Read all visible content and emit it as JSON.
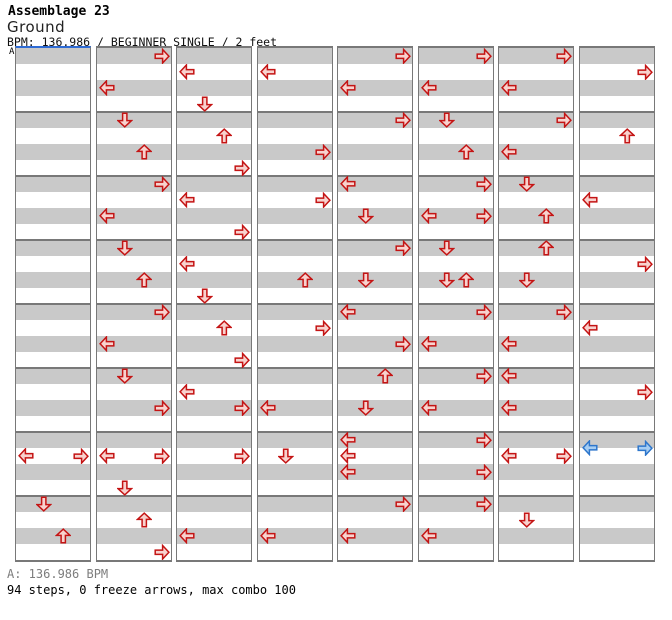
{
  "header": {
    "artist": "Assemblage 23",
    "title": "Ground",
    "meta": "BPM: 136.986 / BEGINNER SINGLE / 2 feet"
  },
  "footer": {
    "bpm_line": "A: 136.986 BPM",
    "stats_line": "94 steps, 0 freeze arrows, max combo 100"
  },
  "chart": {
    "section_label": "A",
    "lanes": [
      "left",
      "down",
      "up",
      "right"
    ],
    "columns": 8,
    "measures_per_column": 8,
    "rows_per_measure": 4,
    "note_colors": {
      "red_note_fill": "#f8d2ce",
      "red_note_stroke": "#c41414",
      "blue_note_fill": "#a6cdf2",
      "blue_note_stroke": "#2d76cc"
    },
    "colors": {
      "row_gray": "#c9c9c9",
      "row_white": "#ffffff",
      "grid_border": "#787878",
      "section_line_blue": "#2e6bd4",
      "footer_gray": "#7d7d7d"
    },
    "notes": [
      [
        [
          25,
          0
        ],
        [
          25,
          3
        ],
        [
          28,
          1
        ],
        [
          30,
          2
        ]
      ],
      [
        [
          0,
          3
        ],
        [
          2,
          0
        ],
        [
          4,
          1
        ],
        [
          6,
          2
        ],
        [
          8,
          3
        ],
        [
          10,
          0
        ],
        [
          12,
          1
        ],
        [
          14,
          2
        ],
        [
          16,
          3
        ],
        [
          18,
          0
        ],
        [
          20,
          1
        ],
        [
          22,
          3
        ],
        [
          25,
          0
        ],
        [
          25,
          3
        ],
        [
          27,
          1
        ],
        [
          29,
          2
        ],
        [
          31,
          3
        ]
      ],
      [
        [
          1,
          0
        ],
        [
          3,
          1
        ],
        [
          5,
          2
        ],
        [
          7,
          3
        ],
        [
          9,
          0
        ],
        [
          11,
          3
        ],
        [
          13,
          0
        ],
        [
          15,
          1
        ],
        [
          17,
          2
        ],
        [
          19,
          3
        ],
        [
          21,
          0
        ],
        [
          22,
          3
        ],
        [
          25,
          3
        ],
        [
          30,
          0
        ]
      ],
      [
        [
          1,
          0
        ],
        [
          6,
          3
        ],
        [
          9,
          3
        ],
        [
          14,
          2
        ],
        [
          17,
          3
        ],
        [
          22,
          0
        ],
        [
          25,
          1
        ],
        [
          30,
          0
        ]
      ],
      [
        [
          0,
          3
        ],
        [
          2,
          0
        ],
        [
          4,
          3
        ],
        [
          8,
          0
        ],
        [
          10,
          1
        ],
        [
          12,
          3
        ],
        [
          14,
          1
        ],
        [
          16,
          0
        ],
        [
          18,
          3
        ],
        [
          20,
          2
        ],
        [
          22,
          1
        ],
        [
          24,
          0
        ],
        [
          25,
          0
        ],
        [
          26,
          0
        ],
        [
          28,
          3
        ],
        [
          30,
          0
        ]
      ],
      [
        [
          0,
          3
        ],
        [
          2,
          0
        ],
        [
          4,
          1
        ],
        [
          6,
          2
        ],
        [
          8,
          3
        ],
        [
          10,
          0
        ],
        [
          10,
          3
        ],
        [
          12,
          1
        ],
        [
          14,
          1
        ],
        [
          14,
          2
        ],
        [
          16,
          3
        ],
        [
          18,
          0
        ],
        [
          20,
          3
        ],
        [
          22,
          0
        ],
        [
          24,
          3
        ],
        [
          26,
          3
        ],
        [
          28,
          3
        ],
        [
          30,
          0
        ]
      ],
      [
        [
          0,
          3
        ],
        [
          2,
          0
        ],
        [
          4,
          3
        ],
        [
          6,
          0
        ],
        [
          8,
          1
        ],
        [
          10,
          2
        ],
        [
          12,
          2
        ],
        [
          14,
          1
        ],
        [
          16,
          3
        ],
        [
          18,
          0
        ],
        [
          20,
          0
        ],
        [
          22,
          0
        ],
        [
          25,
          0
        ],
        [
          25,
          3
        ],
        [
          29,
          1
        ]
      ],
      [
        [
          1,
          3
        ],
        [
          5,
          2
        ],
        [
          9,
          0
        ],
        [
          13,
          3
        ],
        [
          17,
          0
        ],
        [
          21,
          3
        ],
        [
          24.5,
          0,
          "b"
        ],
        [
          24.5,
          3,
          "b"
        ]
      ]
    ]
  }
}
